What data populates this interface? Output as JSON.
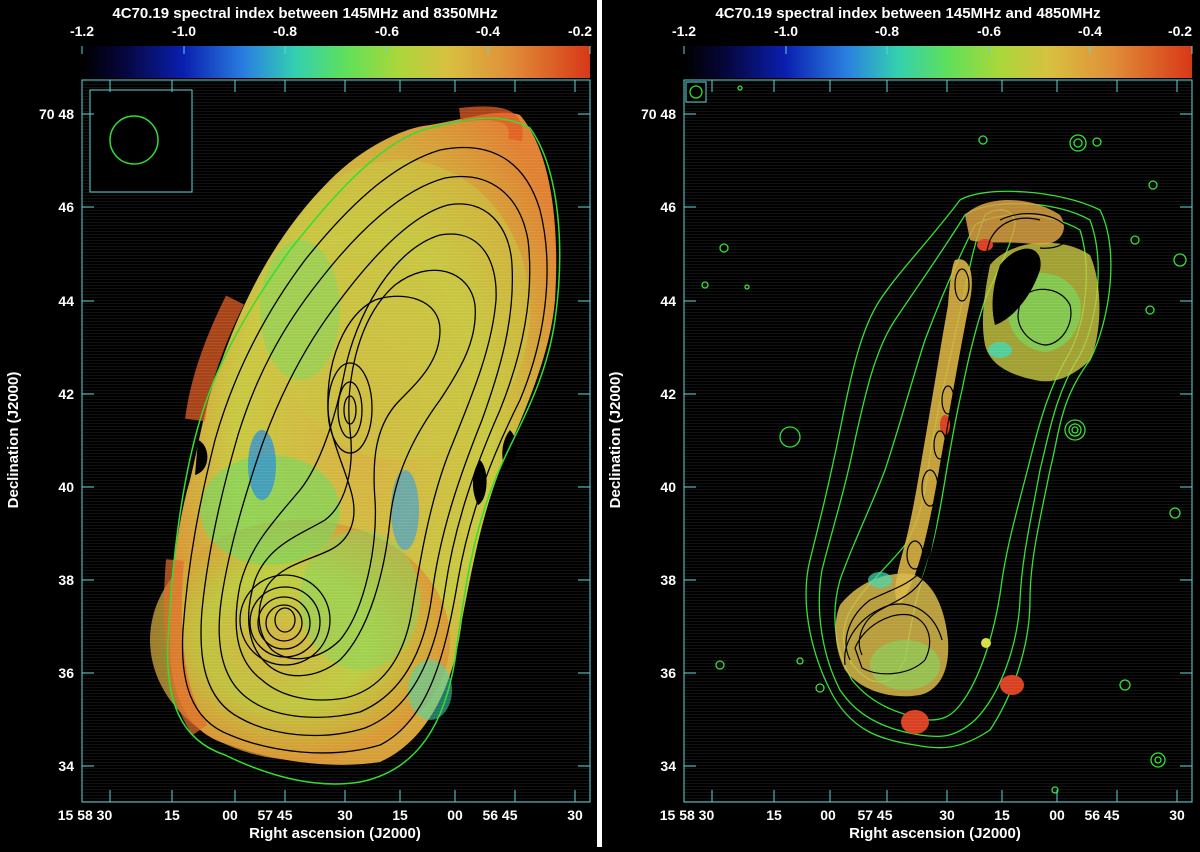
{
  "panels": [
    {
      "title": "4C70.19 spectral index between 145MHz and 8350MHz",
      "colorbar_ticks": [
        "-1.2",
        "-1.0",
        "-0.8",
        "-0.6",
        "-0.4",
        "-0.2"
      ],
      "xlabel": "Right ascension (J2000)",
      "ylabel": "Declination (J2000)",
      "y_ticks": [
        "70 48",
        "46",
        "44",
        "42",
        "40",
        "38",
        "36",
        "34"
      ],
      "x_ticks": [
        "15 58 30",
        "15",
        "00",
        "57 45",
        "30",
        "15",
        "00",
        "56 45",
        "30"
      ]
    },
    {
      "title": "4C70.19 spectral index between 145MHz and 4850MHz",
      "colorbar_ticks": [
        "-1.2",
        "-1.0",
        "-0.8",
        "-0.6",
        "-0.4",
        "-0.2"
      ],
      "xlabel": "Right ascension (J2000)",
      "ylabel": "Declination (J2000)",
      "y_ticks": [
        "70 48",
        "46",
        "44",
        "42",
        "40",
        "38",
        "36",
        "34"
      ],
      "x_ticks": [
        "15 58 30",
        "15",
        "00",
        "57 45",
        "30",
        "15",
        "00",
        "56 45",
        "30"
      ]
    }
  ],
  "chart_data": [
    {
      "type": "heatmap",
      "title": "4C70.19 spectral index between 145MHz and 8350MHz",
      "xlabel": "Right ascension (J2000)",
      "ylabel": "Declination (J2000)",
      "colorbar": {
        "range": [
          -1.2,
          -0.2
        ],
        "ticks": [
          -1.2,
          -1.0,
          -0.8,
          -0.6,
          -0.4,
          -0.2
        ]
      },
      "x_ticks": [
        "15 58 30",
        "15",
        "00",
        "57 45",
        "30",
        "15",
        "00",
        "56 45",
        "30"
      ],
      "y_ticks": [
        "70 48",
        "46",
        "44",
        "42",
        "40",
        "38",
        "36",
        "34"
      ]
    },
    {
      "type": "heatmap",
      "title": "4C70.19 spectral index between 145MHz and 4850MHz",
      "xlabel": "Right ascension (J2000)",
      "ylabel": "Declination (J2000)",
      "colorbar": {
        "range": [
          -1.2,
          -0.2
        ],
        "ticks": [
          -1.2,
          -1.0,
          -0.8,
          -0.6,
          -0.4,
          -0.2
        ]
      },
      "x_ticks": [
        "15 58 30",
        "15",
        "00",
        "57 45",
        "30",
        "15",
        "00",
        "56 45",
        "30"
      ],
      "y_ticks": [
        "70 48",
        "46",
        "44",
        "42",
        "40",
        "38",
        "36",
        "34"
      ]
    }
  ],
  "colors": {
    "axis": "#5fd3d3",
    "contour_outer": "#33dd33",
    "contour_inner": "#000000",
    "divider": "#ffffff"
  }
}
